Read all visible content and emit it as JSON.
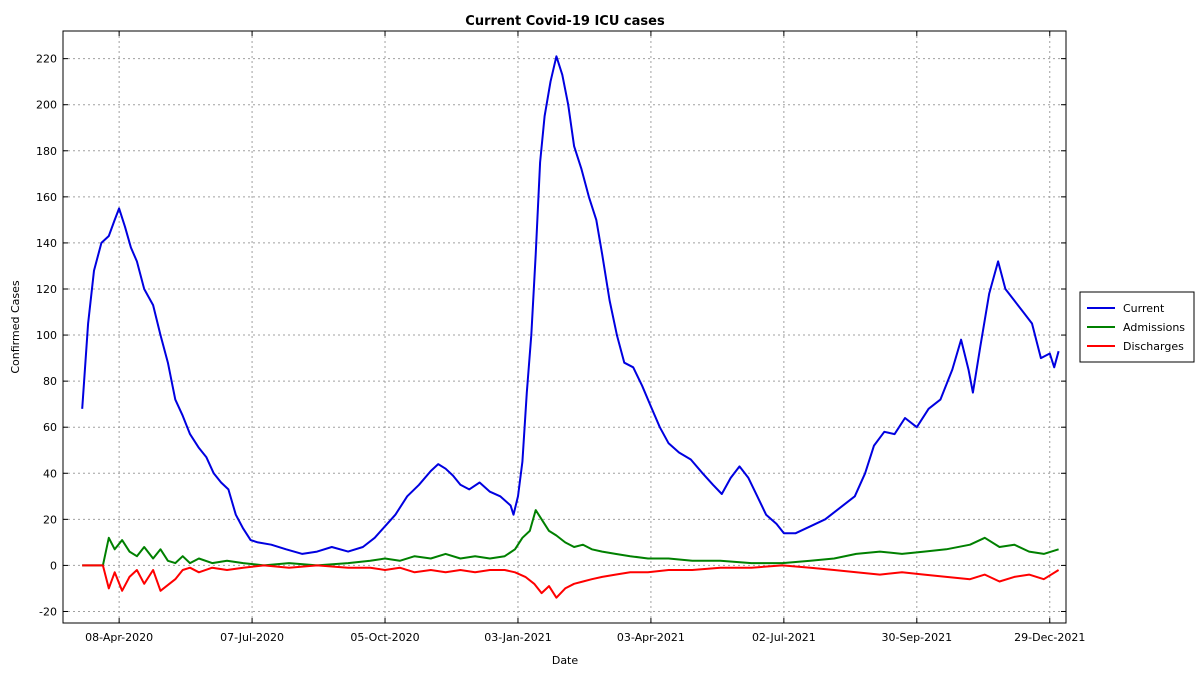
{
  "chart_data": {
    "type": "line",
    "title": "Current Covid-19 ICU cases",
    "xlabel": "Date",
    "ylabel": "Confirmed Cases",
    "xlim": [
      "2020-03-01",
      "2022-01-09"
    ],
    "ylim": [
      -25,
      232
    ],
    "x_ticks": [
      "08-Apr-2020",
      "07-Jul-2020",
      "05-Oct-2020",
      "03-Jan-2021",
      "03-Apr-2021",
      "02-Jul-2021",
      "30-Sep-2021",
      "29-Dec-2021"
    ],
    "x_tick_dates": [
      "2020-04-08",
      "2020-07-07",
      "2020-10-05",
      "2021-01-03",
      "2021-04-03",
      "2021-07-02",
      "2021-09-30",
      "2021-12-29"
    ],
    "y_ticks": [
      -20,
      0,
      20,
      40,
      60,
      80,
      100,
      120,
      140,
      160,
      180,
      200,
      220
    ],
    "grid": true,
    "legend_position": "right",
    "series": [
      {
        "name": "Current",
        "color": "#0000e0",
        "points": [
          [
            "2020-03-14",
            68
          ],
          [
            "2020-03-18",
            105
          ],
          [
            "2020-03-22",
            128
          ],
          [
            "2020-03-27",
            140
          ],
          [
            "2020-04-01",
            143
          ],
          [
            "2020-04-05",
            150
          ],
          [
            "2020-04-08",
            155
          ],
          [
            "2020-04-12",
            147
          ],
          [
            "2020-04-16",
            138
          ],
          [
            "2020-04-20",
            132
          ],
          [
            "2020-04-25",
            120
          ],
          [
            "2020-05-01",
            113
          ],
          [
            "2020-05-06",
            100
          ],
          [
            "2020-05-11",
            88
          ],
          [
            "2020-05-16",
            72
          ],
          [
            "2020-05-21",
            65
          ],
          [
            "2020-05-26",
            57
          ],
          [
            "2020-06-01",
            51
          ],
          [
            "2020-06-06",
            47
          ],
          [
            "2020-06-11",
            40
          ],
          [
            "2020-06-16",
            36
          ],
          [
            "2020-06-21",
            33
          ],
          [
            "2020-06-26",
            22
          ],
          [
            "2020-07-01",
            16
          ],
          [
            "2020-07-06",
            11
          ],
          [
            "2020-07-11",
            10
          ],
          [
            "2020-07-20",
            9
          ],
          [
            "2020-07-30",
            7
          ],
          [
            "2020-08-10",
            5
          ],
          [
            "2020-08-20",
            6
          ],
          [
            "2020-08-30",
            8
          ],
          [
            "2020-09-10",
            6
          ],
          [
            "2020-09-20",
            8
          ],
          [
            "2020-09-28",
            12
          ],
          [
            "2020-10-05",
            17
          ],
          [
            "2020-10-12",
            22
          ],
          [
            "2020-10-20",
            30
          ],
          [
            "2020-10-28",
            35
          ],
          [
            "2020-11-05",
            41
          ],
          [
            "2020-11-10",
            44
          ],
          [
            "2020-11-15",
            42
          ],
          [
            "2020-11-20",
            39
          ],
          [
            "2020-11-25",
            35
          ],
          [
            "2020-12-01",
            33
          ],
          [
            "2020-12-08",
            36
          ],
          [
            "2020-12-15",
            32
          ],
          [
            "2020-12-22",
            30
          ],
          [
            "2020-12-29",
            26
          ],
          [
            "2020-12-31",
            22
          ],
          [
            "2021-01-03",
            30
          ],
          [
            "2021-01-06",
            45
          ],
          [
            "2021-01-09",
            75
          ],
          [
            "2021-01-12",
            100
          ],
          [
            "2021-01-15",
            135
          ],
          [
            "2021-01-18",
            175
          ],
          [
            "2021-01-21",
            195
          ],
          [
            "2021-01-25",
            210
          ],
          [
            "2021-01-29",
            221
          ],
          [
            "2021-02-02",
            213
          ],
          [
            "2021-02-06",
            200
          ],
          [
            "2021-02-10",
            182
          ],
          [
            "2021-02-15",
            172
          ],
          [
            "2021-02-20",
            160
          ],
          [
            "2021-02-25",
            150
          ],
          [
            "2021-03-01",
            135
          ],
          [
            "2021-03-06",
            115
          ],
          [
            "2021-03-11",
            100
          ],
          [
            "2021-03-16",
            88
          ],
          [
            "2021-03-22",
            86
          ],
          [
            "2021-03-28",
            78
          ],
          [
            "2021-04-03",
            69
          ],
          [
            "2021-04-09",
            60
          ],
          [
            "2021-04-15",
            53
          ],
          [
            "2021-04-22",
            49
          ],
          [
            "2021-04-30",
            46
          ],
          [
            "2021-05-08",
            40
          ],
          [
            "2021-05-15",
            35
          ],
          [
            "2021-05-21",
            31
          ],
          [
            "2021-05-27",
            38
          ],
          [
            "2021-06-02",
            43
          ],
          [
            "2021-06-08",
            38
          ],
          [
            "2021-06-14",
            30
          ],
          [
            "2021-06-20",
            22
          ],
          [
            "2021-06-27",
            18
          ],
          [
            "2021-07-02",
            14
          ],
          [
            "2021-07-10",
            14
          ],
          [
            "2021-07-20",
            17
          ],
          [
            "2021-07-30",
            20
          ],
          [
            "2021-08-09",
            25
          ],
          [
            "2021-08-19",
            30
          ],
          [
            "2021-08-26",
            40
          ],
          [
            "2021-09-01",
            52
          ],
          [
            "2021-09-08",
            58
          ],
          [
            "2021-09-15",
            57
          ],
          [
            "2021-09-22",
            64
          ],
          [
            "2021-09-30",
            60
          ],
          [
            "2021-10-08",
            68
          ],
          [
            "2021-10-16",
            72
          ],
          [
            "2021-10-24",
            85
          ],
          [
            "2021-10-30",
            98
          ],
          [
            "2021-11-04",
            85
          ],
          [
            "2021-11-07",
            75
          ],
          [
            "2021-11-12",
            95
          ],
          [
            "2021-11-18",
            118
          ],
          [
            "2021-11-24",
            132
          ],
          [
            "2021-11-29",
            120
          ],
          [
            "2021-12-05",
            115
          ],
          [
            "2021-12-11",
            110
          ],
          [
            "2021-12-17",
            105
          ],
          [
            "2021-12-23",
            90
          ],
          [
            "2021-12-29",
            92
          ],
          [
            "2022-01-01",
            86
          ],
          [
            "2022-01-04",
            93
          ]
        ]
      },
      {
        "name": "Admissions",
        "color": "#008000",
        "points": [
          [
            "2020-03-14",
            0
          ],
          [
            "2020-03-28",
            0
          ],
          [
            "2020-04-01",
            12
          ],
          [
            "2020-04-05",
            7
          ],
          [
            "2020-04-10",
            11
          ],
          [
            "2020-04-15",
            6
          ],
          [
            "2020-04-20",
            4
          ],
          [
            "2020-04-25",
            8
          ],
          [
            "2020-05-01",
            3
          ],
          [
            "2020-05-06",
            7
          ],
          [
            "2020-05-11",
            2
          ],
          [
            "2020-05-16",
            1
          ],
          [
            "2020-05-21",
            4
          ],
          [
            "2020-05-26",
            1
          ],
          [
            "2020-06-01",
            3
          ],
          [
            "2020-06-10",
            1
          ],
          [
            "2020-06-20",
            2
          ],
          [
            "2020-07-01",
            1
          ],
          [
            "2020-07-15",
            0
          ],
          [
            "2020-08-01",
            1
          ],
          [
            "2020-08-20",
            0
          ],
          [
            "2020-09-10",
            1
          ],
          [
            "2020-09-25",
            2
          ],
          [
            "2020-10-05",
            3
          ],
          [
            "2020-10-15",
            2
          ],
          [
            "2020-10-25",
            4
          ],
          [
            "2020-11-05",
            3
          ],
          [
            "2020-11-15",
            5
          ],
          [
            "2020-11-25",
            3
          ],
          [
            "2020-12-05",
            4
          ],
          [
            "2020-12-15",
            3
          ],
          [
            "2020-12-25",
            4
          ],
          [
            "2021-01-01",
            7
          ],
          [
            "2021-01-06",
            12
          ],
          [
            "2021-01-11",
            15
          ],
          [
            "2021-01-15",
            24
          ],
          [
            "2021-01-19",
            20
          ],
          [
            "2021-01-24",
            15
          ],
          [
            "2021-01-29",
            13
          ],
          [
            "2021-02-04",
            10
          ],
          [
            "2021-02-10",
            8
          ],
          [
            "2021-02-16",
            9
          ],
          [
            "2021-02-22",
            7
          ],
          [
            "2021-03-01",
            6
          ],
          [
            "2021-03-10",
            5
          ],
          [
            "2021-03-20",
            4
          ],
          [
            "2021-04-01",
            3
          ],
          [
            "2021-04-15",
            3
          ],
          [
            "2021-05-01",
            2
          ],
          [
            "2021-05-20",
            2
          ],
          [
            "2021-06-10",
            1
          ],
          [
            "2021-07-01",
            1
          ],
          [
            "2021-07-20",
            2
          ],
          [
            "2021-08-05",
            3
          ],
          [
            "2021-08-20",
            5
          ],
          [
            "2021-09-05",
            6
          ],
          [
            "2021-09-20",
            5
          ],
          [
            "2021-10-05",
            6
          ],
          [
            "2021-10-20",
            7
          ],
          [
            "2021-11-05",
            9
          ],
          [
            "2021-11-15",
            12
          ],
          [
            "2021-11-25",
            8
          ],
          [
            "2021-12-05",
            9
          ],
          [
            "2021-12-15",
            6
          ],
          [
            "2021-12-25",
            5
          ],
          [
            "2022-01-04",
            7
          ]
        ]
      },
      {
        "name": "Discharges",
        "color": "#ff0000",
        "points": [
          [
            "2020-03-14",
            0
          ],
          [
            "2020-03-28",
            0
          ],
          [
            "2020-04-01",
            -10
          ],
          [
            "2020-04-05",
            -3
          ],
          [
            "2020-04-10",
            -11
          ],
          [
            "2020-04-15",
            -5
          ],
          [
            "2020-04-20",
            -2
          ],
          [
            "2020-04-25",
            -8
          ],
          [
            "2020-05-01",
            -2
          ],
          [
            "2020-05-06",
            -11
          ],
          [
            "2020-05-16",
            -6
          ],
          [
            "2020-05-21",
            -2
          ],
          [
            "2020-05-26",
            -1
          ],
          [
            "2020-06-01",
            -3
          ],
          [
            "2020-06-10",
            -1
          ],
          [
            "2020-06-20",
            -2
          ],
          [
            "2020-07-01",
            -1
          ],
          [
            "2020-07-15",
            0
          ],
          [
            "2020-08-01",
            -1
          ],
          [
            "2020-08-20",
            0
          ],
          [
            "2020-09-10",
            -1
          ],
          [
            "2020-09-25",
            -1
          ],
          [
            "2020-10-05",
            -2
          ],
          [
            "2020-10-15",
            -1
          ],
          [
            "2020-10-25",
            -3
          ],
          [
            "2020-11-05",
            -2
          ],
          [
            "2020-11-15",
            -3
          ],
          [
            "2020-11-25",
            -2
          ],
          [
            "2020-12-05",
            -3
          ],
          [
            "2020-12-15",
            -2
          ],
          [
            "2020-12-25",
            -2
          ],
          [
            "2021-01-01",
            -3
          ],
          [
            "2021-01-08",
            -5
          ],
          [
            "2021-01-14",
            -8
          ],
          [
            "2021-01-19",
            -12
          ],
          [
            "2021-01-24",
            -9
          ],
          [
            "2021-01-29",
            -14
          ],
          [
            "2021-02-04",
            -10
          ],
          [
            "2021-02-10",
            -8
          ],
          [
            "2021-02-16",
            -7
          ],
          [
            "2021-02-22",
            -6
          ],
          [
            "2021-03-01",
            -5
          ],
          [
            "2021-03-10",
            -4
          ],
          [
            "2021-03-20",
            -3
          ],
          [
            "2021-04-01",
            -3
          ],
          [
            "2021-04-15",
            -2
          ],
          [
            "2021-05-01",
            -2
          ],
          [
            "2021-05-20",
            -1
          ],
          [
            "2021-06-10",
            -1
          ],
          [
            "2021-07-01",
            0
          ],
          [
            "2021-07-20",
            -1
          ],
          [
            "2021-08-05",
            -2
          ],
          [
            "2021-08-20",
            -3
          ],
          [
            "2021-09-05",
            -4
          ],
          [
            "2021-09-20",
            -3
          ],
          [
            "2021-10-05",
            -4
          ],
          [
            "2021-10-20",
            -5
          ],
          [
            "2021-11-05",
            -6
          ],
          [
            "2021-11-15",
            -4
          ],
          [
            "2021-11-25",
            -7
          ],
          [
            "2021-12-05",
            -5
          ],
          [
            "2021-12-15",
            -4
          ],
          [
            "2021-12-25",
            -6
          ],
          [
            "2022-01-04",
            -2
          ]
        ]
      }
    ]
  }
}
